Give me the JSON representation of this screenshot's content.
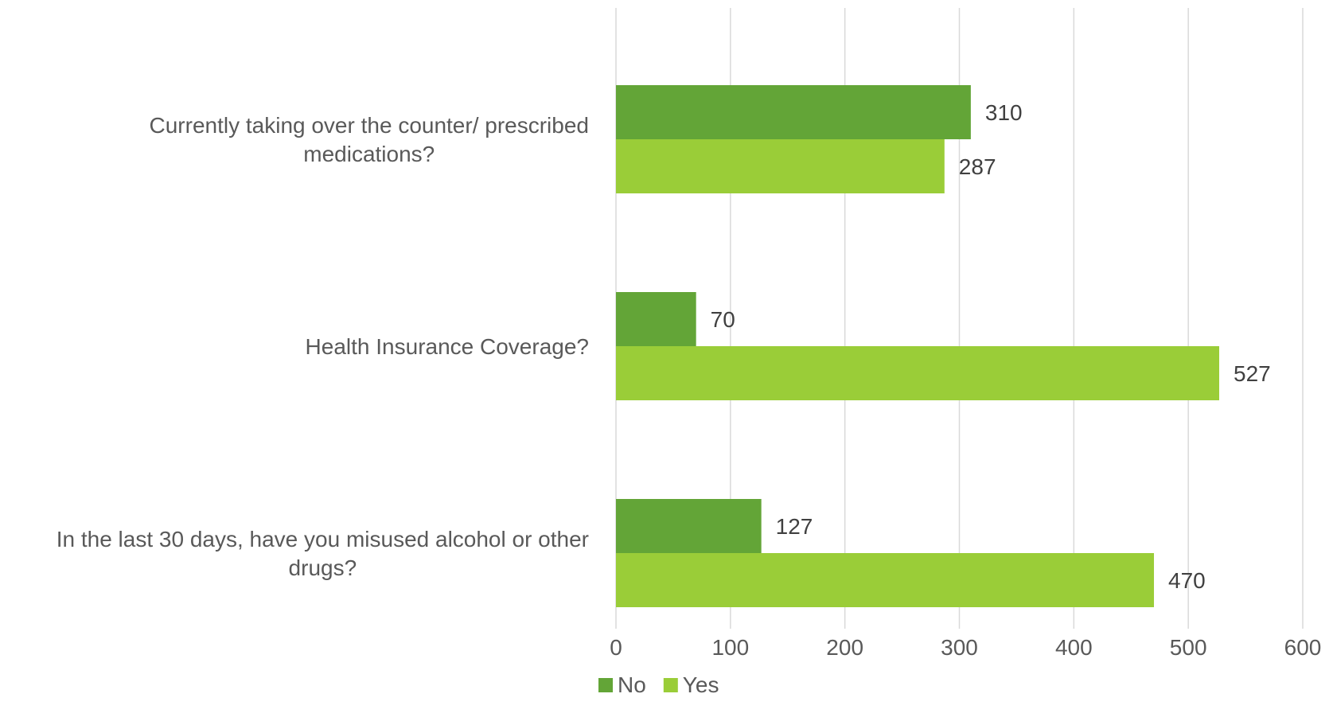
{
  "chart_data": {
    "type": "bar",
    "orientation": "horizontal",
    "categories": [
      [
        "Currently taking over the counter/ prescribed",
        "medications?"
      ],
      [
        "Health Insurance Coverage?"
      ],
      [
        "In the last 30 days, have you misused alcohol or other",
        "drugs?"
      ]
    ],
    "series": [
      {
        "name": "No",
        "color": "#63A537",
        "values": [
          310,
          70,
          127
        ]
      },
      {
        "name": "Yes",
        "color": "#9ACD38",
        "values": [
          287,
          527,
          470
        ]
      }
    ],
    "xlim": [
      0,
      600
    ],
    "xticks": [
      "0",
      "100",
      "200",
      "300",
      "400",
      "500",
      "600"
    ],
    "grid": true,
    "legend": "bottom",
    "data_labels": true
  },
  "colors": {
    "grid": "#D9D9D9",
    "text": "#595959"
  }
}
